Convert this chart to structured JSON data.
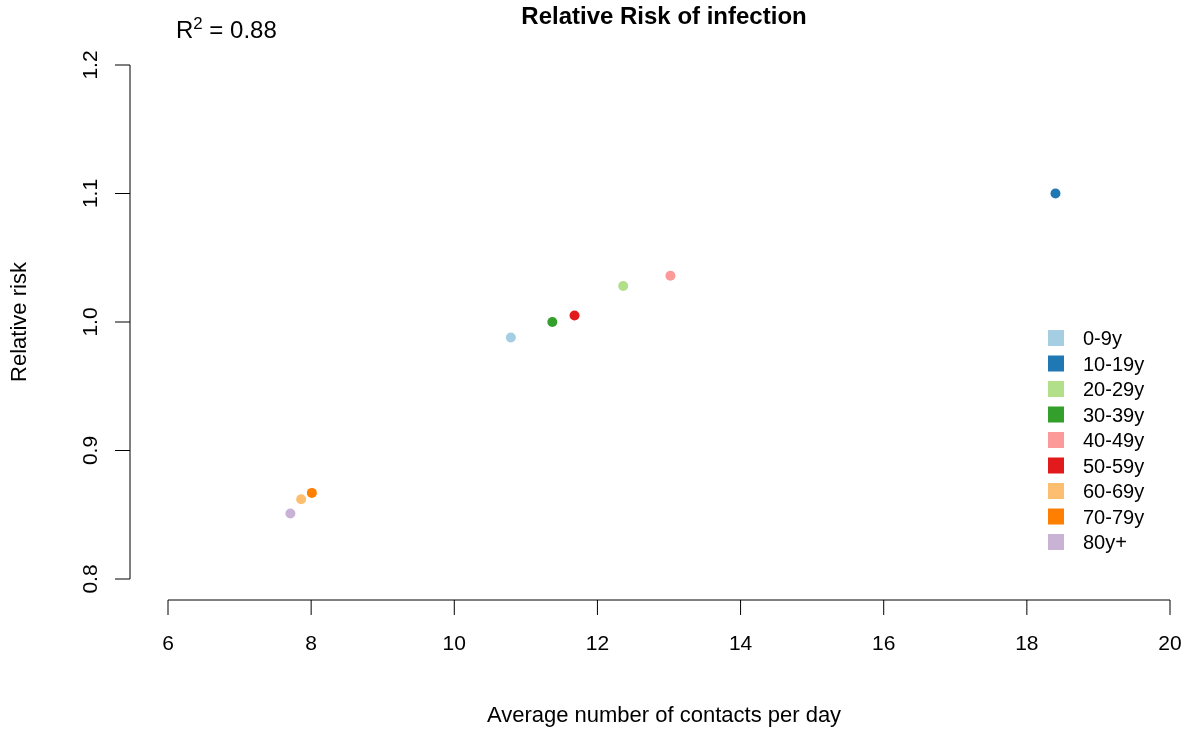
{
  "chart_data": {
    "type": "scatter",
    "title": "Relative Risk of infection",
    "xlabel": "Average number of contacts per day",
    "ylabel": "Relative risk",
    "annotations": [
      "R$^{2}$ = 0.88"
    ],
    "xlim": [
      6,
      20
    ],
    "xticks": [
      6,
      8,
      10,
      12,
      14,
      16,
      18,
      20
    ],
    "ylim": [
      0.8,
      1.2
    ],
    "yticks": [
      0.8,
      0.9,
      {
        "value": 1,
        "label": "1.0"
      },
      1.1,
      1.2
    ],
    "grid": false,
    "legend": "right",
    "marker": "circle",
    "series": [
      {
        "name": "0-9y",
        "color": "#a6cee3",
        "x": [
          10.79
        ],
        "values": [
          0.988
        ]
      },
      {
        "name": "10-19y",
        "color": "#1f78b4",
        "x": [
          18.4
        ],
        "values": [
          1.1
        ]
      },
      {
        "name": "20-29y",
        "color": "#b2df8a",
        "x": [
          12.36
        ],
        "values": [
          1.028
        ]
      },
      {
        "name": "30-39y",
        "color": "#33a02c",
        "x": [
          11.37
        ],
        "values": [
          1.0
        ]
      },
      {
        "name": "40-49y",
        "color": "#fb9a99",
        "x": [
          13.02
        ],
        "values": [
          1.036
        ]
      },
      {
        "name": "50-59y",
        "color": "#e31a1c",
        "x": [
          11.68
        ],
        "values": [
          1.005
        ]
      },
      {
        "name": "60-69y",
        "color": "#fdbf6f",
        "x": [
          7.86
        ],
        "values": [
          0.862
        ]
      },
      {
        "name": "70-79y",
        "color": "#ff7f00",
        "x": [
          8.01
        ],
        "values": [
          0.867
        ]
      },
      {
        "name": "80y+",
        "color": "#cab2d6",
        "x": [
          7.71
        ],
        "values": [
          0.851
        ]
      }
    ]
  }
}
